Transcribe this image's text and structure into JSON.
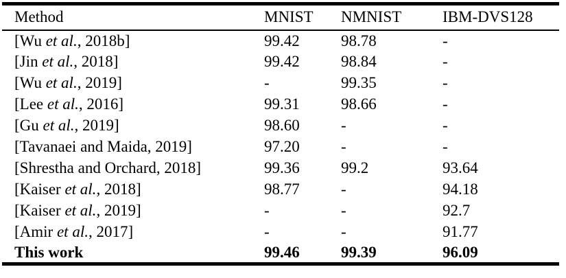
{
  "table": {
    "columns": [
      "Method",
      "MNIST",
      "NMNIST",
      "IBM-DVS128"
    ],
    "rows": [
      {
        "method_pre": "[Wu ",
        "method_italic": "et al.",
        "method_post": ", 2018b]",
        "mnist": "99.42",
        "nmnist": "98.78",
        "ibm": "-",
        "bold": false
      },
      {
        "method_pre": "[Jin ",
        "method_italic": "et al.",
        "method_post": ", 2018]",
        "mnist": "99.42",
        "nmnist": "98.84",
        "ibm": "-",
        "bold": false
      },
      {
        "method_pre": "[Wu ",
        "method_italic": "et al.",
        "method_post": ", 2019]",
        "mnist": "-",
        "nmnist": "99.35",
        "ibm": "-",
        "bold": false
      },
      {
        "method_pre": "[Lee ",
        "method_italic": "et al.",
        "method_post": ", 2016]",
        "mnist": "99.31",
        "nmnist": "98.66",
        "ibm": "-",
        "bold": false
      },
      {
        "method_pre": "[Gu ",
        "method_italic": "et al.",
        "method_post": ", 2019]",
        "mnist": "98.60",
        "nmnist": "-",
        "ibm": "-",
        "bold": false
      },
      {
        "method_pre": "[Tavanaei and Maida, 2019]",
        "method_italic": "",
        "method_post": "",
        "mnist": "97.20",
        "nmnist": "-",
        "ibm": "-",
        "bold": false
      },
      {
        "method_pre": "[Shrestha and Orchard, 2018]",
        "method_italic": "",
        "method_post": "",
        "mnist": "99.36",
        "nmnist": "99.2",
        "ibm": "93.64",
        "bold": false
      },
      {
        "method_pre": "[Kaiser ",
        "method_italic": "et al.",
        "method_post": ", 2018]",
        "mnist": "98.77",
        "nmnist": "-",
        "ibm": "94.18",
        "bold": false
      },
      {
        "method_pre": "[Kaiser ",
        "method_italic": "et al.",
        "method_post": ", 2019]",
        "mnist": "-",
        "nmnist": "-",
        "ibm": "92.7",
        "bold": false
      },
      {
        "method_pre": "[Amir ",
        "method_italic": "et al.",
        "method_post": ", 2017]",
        "mnist": "-",
        "nmnist": "-",
        "ibm": "91.77",
        "bold": false
      },
      {
        "method_pre": "This work",
        "method_italic": "",
        "method_post": "",
        "mnist": "99.46",
        "nmnist": "99.39",
        "ibm": "96.09",
        "bold": true
      }
    ],
    "colors": {
      "text": "#000000",
      "background": "#ffffff",
      "rule": "#000000"
    }
  }
}
